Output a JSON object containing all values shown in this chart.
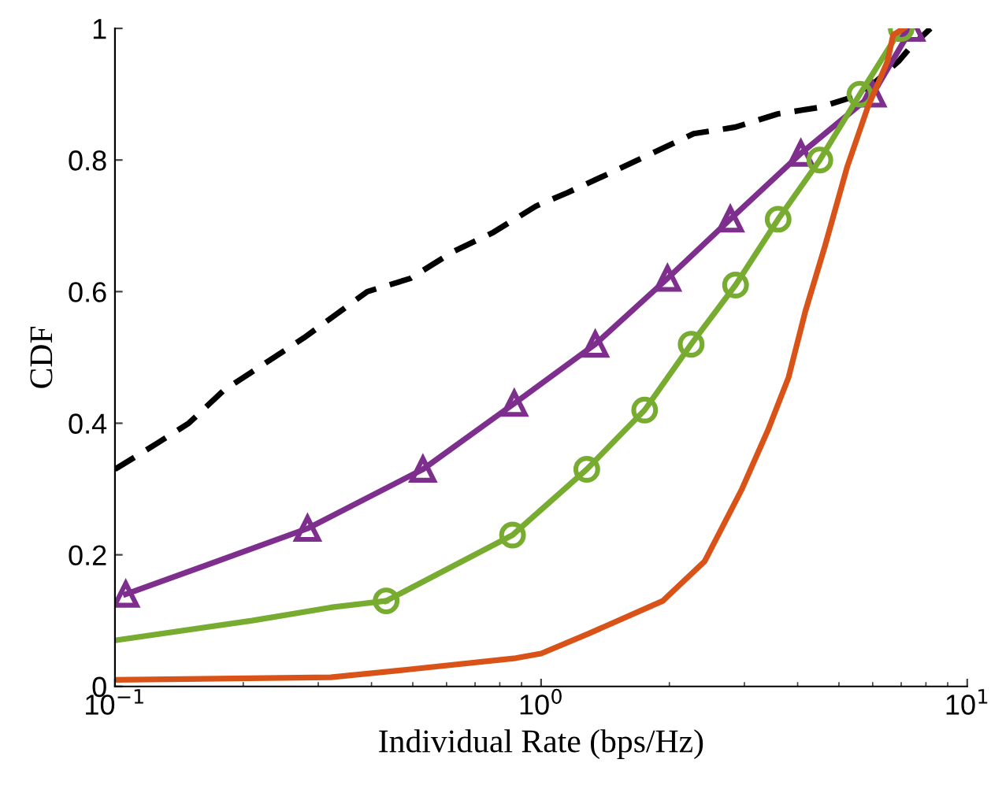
{
  "chart_data": {
    "type": "line",
    "xlabel": "Individual Rate (bps/Hz)",
    "ylabel": "CDF",
    "log": "x",
    "grid": false,
    "xlim": [
      0.1,
      10
    ],
    "xticks": [
      {
        "value": 0.1,
        "label": "10$^{−1}$"
      },
      {
        "value": 1,
        "label": "10$^{0}$"
      },
      {
        "value": 10,
        "label": "10$^{1}$"
      }
    ],
    "ylim": [
      0,
      1
    ],
    "yticks": [
      0,
      0.2,
      0.4,
      0.6,
      0.8,
      1
    ],
    "series": [
      {
        "color": "#000000",
        "line_style": "dashed",
        "marker": "none",
        "x": [
          0.1,
          0.126,
          0.149,
          0.18,
          0.278,
          0.391,
          0.493,
          0.619,
          0.772,
          0.973,
          1.15,
          1.45,
          2.28,
          2.86,
          3.59,
          4.51,
          5.65,
          6.9,
          7.33,
          8.2
        ],
        "values": [
          0.33,
          0.37,
          0.4,
          0.45,
          0.53,
          0.6,
          0.62,
          0.66,
          0.69,
          0.73,
          0.75,
          0.78,
          0.84,
          0.85,
          0.87,
          0.88,
          0.9,
          0.95,
          0.97,
          1.0
        ]
      },
      {
        "color": "#7e2f8e",
        "line_style": "solid",
        "marker": "triangle",
        "x": [
          0.106,
          0.283,
          0.528,
          0.865,
          1.34,
          1.98,
          2.78,
          4.07,
          6.0,
          7.4
        ],
        "values": [
          0.14,
          0.24,
          0.33,
          0.43,
          0.52,
          0.62,
          0.71,
          0.81,
          0.9,
          1.0
        ]
      },
      {
        "color": "#77ac30",
        "line_style": "solid",
        "marker": "none",
        "x": [
          0.1,
          0.21,
          0.321,
          0.433
        ],
        "values": [
          0.07,
          0.1,
          0.12,
          0.13
        ]
      },
      {
        "color": "#77ac30",
        "line_style": "solid",
        "marker": "circle",
        "x": [
          0.433,
          0.857,
          1.28,
          1.75,
          2.25,
          2.86,
          3.6,
          4.51,
          5.6,
          7.0
        ],
        "values": [
          0.13,
          0.23,
          0.33,
          0.42,
          0.52,
          0.61,
          0.71,
          0.8,
          0.9,
          1.0
        ]
      },
      {
        "color": "#d95319",
        "line_style": "solid",
        "marker": "none",
        "x": [
          0.1,
          0.321,
          0.493,
          0.872,
          1.0,
          1.29,
          1.93,
          2.42,
          2.96,
          3.41,
          3.81,
          4.17,
          4.64,
          5.23,
          5.84,
          6.5,
          6.7,
          7.1
        ],
        "values": [
          0.01,
          0.014,
          0.026,
          0.043,
          0.05,
          0.08,
          0.13,
          0.19,
          0.3,
          0.39,
          0.47,
          0.57,
          0.67,
          0.79,
          0.88,
          0.95,
          0.99,
          1.0
        ]
      }
    ]
  }
}
